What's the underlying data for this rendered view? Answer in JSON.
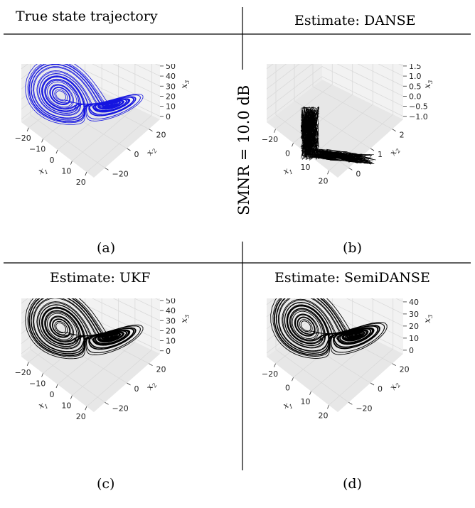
{
  "figure": {
    "center_label": "SMNR = 10.0 dB",
    "colors": {
      "true_state": "#1515e0",
      "estimate": "#000000",
      "pane": "#f2f2f2",
      "grid": "#d7d7d7"
    }
  },
  "chart_data": [
    {
      "type": "line3d",
      "title": "True state trajectory",
      "caption": "(a)",
      "series": [
        {
          "name": "",
          "color": "#1515e0"
        }
      ],
      "x1_ticks": [
        "−20",
        "−10",
        "0",
        "10",
        "20"
      ],
      "x2_ticks": [
        "−20",
        "0",
        "20"
      ],
      "x3_ticks": [
        "0",
        "10",
        "20",
        "30",
        "40",
        "50"
      ],
      "xlabel": "x1",
      "ylabel": "x2",
      "zlabel": "x3",
      "xlim": [
        -20,
        20
      ],
      "ylim": [
        -25,
        25
      ],
      "zlim": [
        0,
        50
      ],
      "grid": true
    },
    {
      "type": "line3d",
      "title": "Estimate: DANSE",
      "caption": "(b)",
      "series": [
        {
          "name": "",
          "color": "#000000"
        }
      ],
      "x1_ticks": [
        "−20",
        "0",
        "10",
        "20"
      ],
      "x2_ticks": [
        "0",
        "1",
        "2"
      ],
      "x3_ticks": [
        "−1.0",
        "−0.5",
        "0.0",
        "0.5",
        "1.0",
        "1.5"
      ],
      "xlabel": "x1",
      "ylabel": "x2",
      "zlabel": "x3",
      "xlim": [
        -20,
        20
      ],
      "ylim": [
        -0.5,
        2
      ],
      "zlim": [
        -1.2,
        1.6
      ],
      "grid": true
    },
    {
      "type": "line3d",
      "title": "Estimate: UKF",
      "caption": "(c)",
      "series": [
        {
          "name": "",
          "color": "#000000"
        }
      ],
      "x1_ticks": [
        "−20",
        "−10",
        "0",
        "10",
        "20"
      ],
      "x2_ticks": [
        "−20",
        "0",
        "20"
      ],
      "x3_ticks": [
        "0",
        "10",
        "20",
        "30",
        "40",
        "50"
      ],
      "xlabel": "x1",
      "ylabel": "x2",
      "zlabel": "x3",
      "xlim": [
        -20,
        20
      ],
      "ylim": [
        -25,
        25
      ],
      "zlim": [
        0,
        50
      ],
      "grid": true
    },
    {
      "type": "line3d",
      "title": "Estimate: SemiDANSE",
      "caption": "(d)",
      "series": [
        {
          "name": "",
          "color": "#000000"
        }
      ],
      "x1_ticks": [
        "−20",
        "0",
        "10",
        "20"
      ],
      "x2_ticks": [
        "−20",
        "0",
        "20"
      ],
      "x3_ticks": [
        "0",
        "10",
        "20",
        "30",
        "40"
      ],
      "xlabel": "x1",
      "ylabel": "x2",
      "zlabel": "x3",
      "xlim": [
        -20,
        20
      ],
      "ylim": [
        -25,
        25
      ],
      "zlim": [
        0,
        45
      ],
      "grid": true
    }
  ]
}
